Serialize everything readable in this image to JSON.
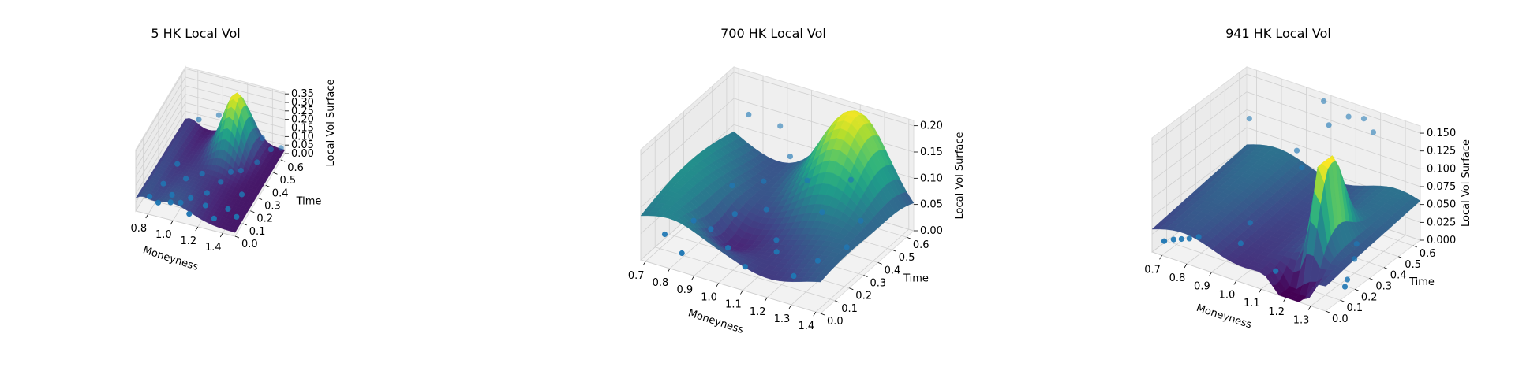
{
  "chart_data": [
    {
      "type": "surface3d",
      "title": "5 HK Local Vol",
      "xlabel": "Moneyness",
      "ylabel": "Time",
      "zlabel": "Local Vol Surface",
      "x_ticks": [
        "0.8",
        "1.0",
        "1.2",
        "1.4"
      ],
      "y_ticks": [
        "0.0",
        "0.1",
        "0.2",
        "0.3",
        "0.4",
        "0.5",
        "0.6"
      ],
      "z_ticks": [
        "0.00",
        "0.05",
        "0.10",
        "0.15",
        "0.20",
        "0.25",
        "0.30",
        "0.35"
      ],
      "xlim": [
        0.7,
        1.5
      ],
      "ylim": [
        0.0,
        0.65
      ],
      "zlim": [
        0.0,
        0.36
      ],
      "colormap": "viridis",
      "scatter_color": "#1f77b4",
      "surface_peak": {
        "x": 1.15,
        "y": 0.55,
        "z": 0.35
      },
      "scatter": [
        {
          "x": 0.75,
          "y": 0.1,
          "z": 0.02
        },
        {
          "x": 0.8,
          "y": 0.2,
          "z": 0.03
        },
        {
          "x": 0.85,
          "y": 0.05,
          "z": 0.04
        },
        {
          "x": 0.9,
          "y": 0.15,
          "z": 0.02
        },
        {
          "x": 0.95,
          "y": 0.25,
          "z": 0.05
        },
        {
          "x": 1.0,
          "y": 0.1,
          "z": 0.03
        },
        {
          "x": 1.05,
          "y": 0.3,
          "z": 0.06
        },
        {
          "x": 1.1,
          "y": 0.05,
          "z": 0.02
        },
        {
          "x": 1.15,
          "y": 0.2,
          "z": 0.04
        },
        {
          "x": 1.2,
          "y": 0.1,
          "z": 0.05
        },
        {
          "x": 1.25,
          "y": 0.35,
          "z": 0.07
        },
        {
          "x": 1.3,
          "y": 0.05,
          "z": 0.03
        },
        {
          "x": 1.35,
          "y": 0.15,
          "z": 0.02
        },
        {
          "x": 1.4,
          "y": 0.25,
          "z": 0.04
        },
        {
          "x": 1.45,
          "y": 0.1,
          "z": 0.03
        },
        {
          "x": 1.4,
          "y": 0.45,
          "z": 0.08
        },
        {
          "x": 1.45,
          "y": 0.55,
          "z": 0.09
        },
        {
          "x": 1.35,
          "y": 0.6,
          "z": 0.1
        },
        {
          "x": 0.9,
          "y": 0.5,
          "z": 0.2
        },
        {
          "x": 1.0,
          "y": 0.6,
          "z": 0.17
        },
        {
          "x": 0.85,
          "y": 0.3,
          "z": 0.08
        },
        {
          "x": 0.95,
          "y": 0.05,
          "z": 0.06
        },
        {
          "x": 1.05,
          "y": 0.15,
          "z": 0.03
        },
        {
          "x": 1.2,
          "y": 0.3,
          "z": 0.04
        },
        {
          "x": 1.3,
          "y": 0.4,
          "z": 0.05
        },
        {
          "x": 1.5,
          "y": 0.6,
          "z": 0.07
        }
      ]
    },
    {
      "type": "surface3d",
      "title": "700 HK Local Vol",
      "xlabel": "Moneyness",
      "ylabel": "Time",
      "zlabel": "Local Vol Surface",
      "x_ticks": [
        "0.7",
        "0.8",
        "0.9",
        "1.0",
        "1.1",
        "1.2",
        "1.3",
        "1.4"
      ],
      "y_ticks": [
        "0.0",
        "0.1",
        "0.2",
        "0.3",
        "0.4",
        "0.5",
        "0.6"
      ],
      "z_ticks": [
        "0.00",
        "0.05",
        "0.10",
        "0.15",
        "0.20"
      ],
      "xlim": [
        0.68,
        1.42
      ],
      "ylim": [
        0.0,
        0.65
      ],
      "zlim": [
        0.0,
        0.21
      ],
      "colormap": "viridis",
      "scatter_color": "#1f77b4",
      "surface_peak": {
        "x": 1.2,
        "y": 0.6,
        "z": 0.2
      },
      "scatter": [
        {
          "x": 0.72,
          "y": 0.1,
          "z": 0.03
        },
        {
          "x": 0.78,
          "y": 0.2,
          "z": 0.04
        },
        {
          "x": 0.82,
          "y": 0.05,
          "z": 0.02
        },
        {
          "x": 0.88,
          "y": 0.15,
          "z": 0.05
        },
        {
          "x": 0.92,
          "y": 0.25,
          "z": 0.06
        },
        {
          "x": 0.98,
          "y": 0.1,
          "z": 0.04
        },
        {
          "x": 1.02,
          "y": 0.3,
          "z": 0.07
        },
        {
          "x": 1.08,
          "y": 0.05,
          "z": 0.03
        },
        {
          "x": 1.12,
          "y": 0.2,
          "z": 0.05
        },
        {
          "x": 1.18,
          "y": 0.1,
          "z": 0.06
        },
        {
          "x": 1.22,
          "y": 0.35,
          "z": 0.08
        },
        {
          "x": 1.28,
          "y": 0.05,
          "z": 0.04
        },
        {
          "x": 1.32,
          "y": 0.15,
          "z": 0.05
        },
        {
          "x": 1.38,
          "y": 0.25,
          "z": 0.06
        },
        {
          "x": 0.8,
          "y": 0.55,
          "z": 0.16
        },
        {
          "x": 0.9,
          "y": 0.6,
          "z": 0.14
        },
        {
          "x": 1.0,
          "y": 0.5,
          "z": 0.12
        },
        {
          "x": 1.1,
          "y": 0.45,
          "z": 0.1
        },
        {
          "x": 0.95,
          "y": 0.4,
          "z": 0.09
        },
        {
          "x": 1.25,
          "y": 0.5,
          "z": 0.11
        },
        {
          "x": 1.35,
          "y": 0.4,
          "z": 0.07
        },
        {
          "x": 0.85,
          "y": 0.35,
          "z": 0.08
        }
      ]
    },
    {
      "type": "surface3d",
      "title": "941 HK Local Vol",
      "xlabel": "Moneyness",
      "ylabel": "Time",
      "zlabel": "Local Vol Surface",
      "x_ticks": [
        "0.7",
        "0.8",
        "0.9",
        "1.0",
        "1.1",
        "1.2",
        "1.3"
      ],
      "y_ticks": [
        "0.0",
        "0.1",
        "0.2",
        "0.3",
        "0.4",
        "0.5",
        "0.6"
      ],
      "z_ticks": [
        "0.000",
        "0.025",
        "0.050",
        "0.075",
        "0.100",
        "0.125",
        "0.150"
      ],
      "xlim": [
        0.66,
        1.36
      ],
      "ylim": [
        0.0,
        0.65
      ],
      "zlim": [
        0.0,
        0.16
      ],
      "colormap": "viridis",
      "scatter_color": "#1f77b4",
      "surface_peak": {
        "x": 1.25,
        "y": 0.25,
        "z": 0.06
      },
      "scatter": [
        {
          "x": 0.68,
          "y": 0.05,
          "z": 0.01
        },
        {
          "x": 0.7,
          "y": 0.08,
          "z": 0.01
        },
        {
          "x": 0.72,
          "y": 0.1,
          "z": 0.01
        },
        {
          "x": 0.74,
          "y": 0.12,
          "z": 0.01
        },
        {
          "x": 0.76,
          "y": 0.15,
          "z": 0.01
        },
        {
          "x": 0.7,
          "y": 0.6,
          "z": 0.1
        },
        {
          "x": 1.0,
          "y": 0.6,
          "z": 0.16
        },
        {
          "x": 1.05,
          "y": 0.55,
          "z": 0.14
        },
        {
          "x": 1.1,
          "y": 0.6,
          "z": 0.15
        },
        {
          "x": 1.15,
          "y": 0.62,
          "z": 0.15
        },
        {
          "x": 1.2,
          "y": 0.6,
          "z": 0.14
        },
        {
          "x": 0.95,
          "y": 0.5,
          "z": 0.1
        },
        {
          "x": 1.0,
          "y": 0.45,
          "z": 0.09
        },
        {
          "x": 1.3,
          "y": 0.3,
          "z": 0.02
        },
        {
          "x": 1.33,
          "y": 0.2,
          "z": 0.01
        },
        {
          "x": 1.35,
          "y": 0.15,
          "z": 0.01
        },
        {
          "x": 1.25,
          "y": 0.4,
          "z": 0.02
        },
        {
          "x": 0.9,
          "y": 0.2,
          "z": 0.01
        },
        {
          "x": 1.1,
          "y": 0.1,
          "z": 0.01
        },
        {
          "x": 0.85,
          "y": 0.35,
          "z": 0.01
        }
      ]
    }
  ]
}
